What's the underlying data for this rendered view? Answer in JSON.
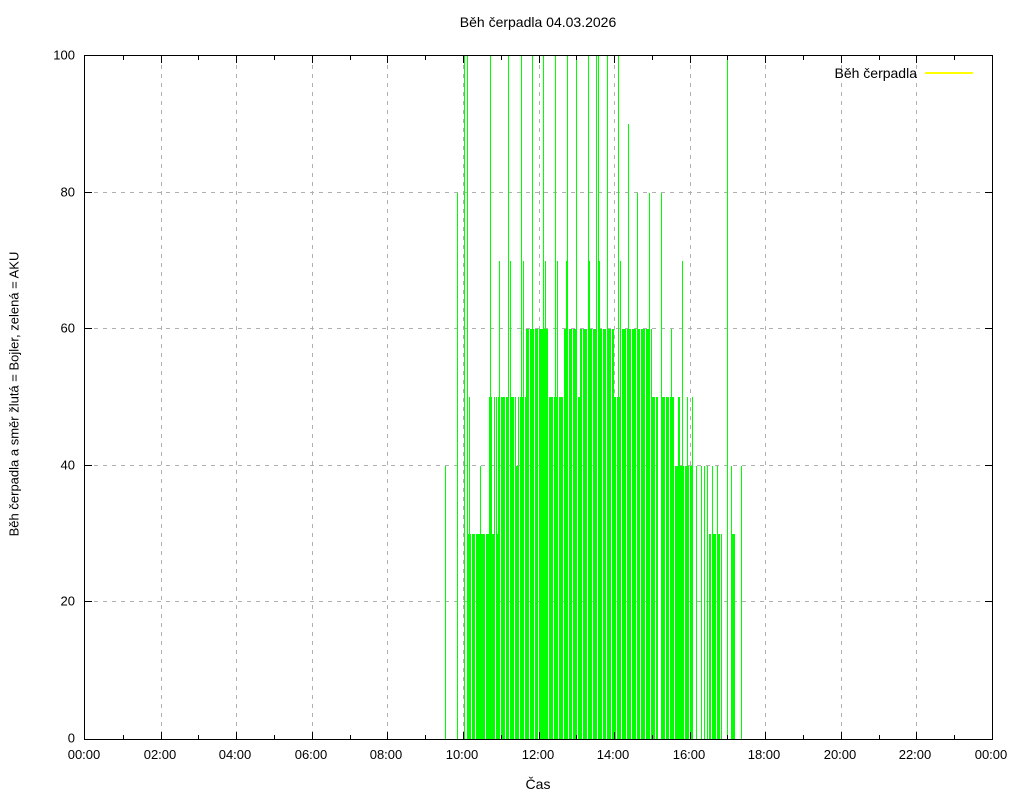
{
  "chart_data": {
    "type": "bar",
    "style": "impulses",
    "title": "Běh čerpadla 04.03.2026",
    "xlabel": "Čas",
    "ylabel": "Běh čerpadla a směr žlutá = Bojler, zelená = AKU",
    "legend": {
      "label": "Běh čerpadla",
      "line_color": "#ffff00",
      "position": "top-right"
    },
    "series_color": "#00ff00",
    "grid_color": "#b0b0b0",
    "grid": true,
    "ylim": [
      0,
      100
    ],
    "x_range_minutes": [
      0,
      1440
    ],
    "y_ticks": [
      0,
      20,
      40,
      60,
      80,
      100
    ],
    "x_tick_interval_hours": 2,
    "x_minor_tick_interval_hours": 1,
    "x_tick_labels": [
      "00:00",
      "02:00",
      "04:00",
      "06:00",
      "08:00",
      "10:00",
      "12:00",
      "14:00",
      "16:00",
      "18:00",
      "20:00",
      "22:00",
      "00:00"
    ],
    "impulses_format": "[minute_of_day, percent_value]",
    "impulses": [
      [
        571,
        40
      ],
      [
        590,
        80
      ],
      [
        601,
        100
      ],
      [
        606,
        100
      ],
      [
        608,
        30
      ],
      [
        609,
        50
      ],
      [
        610,
        30
      ],
      [
        612,
        30
      ],
      [
        614,
        30
      ],
      [
        616,
        30
      ],
      [
        618,
        30
      ],
      [
        620,
        30
      ],
      [
        622,
        30
      ],
      [
        624,
        30
      ],
      [
        626,
        30
      ],
      [
        627,
        40
      ],
      [
        628,
        30
      ],
      [
        630,
        30
      ],
      [
        632,
        30
      ],
      [
        634,
        30
      ],
      [
        636,
        30
      ],
      [
        638,
        30
      ],
      [
        640,
        30
      ],
      [
        641,
        50
      ],
      [
        642,
        30
      ],
      [
        643,
        100
      ],
      [
        644,
        30
      ],
      [
        645,
        50
      ],
      [
        646,
        30
      ],
      [
        648,
        30
      ],
      [
        649,
        50
      ],
      [
        650,
        30
      ],
      [
        652,
        30
      ],
      [
        653,
        50
      ],
      [
        654,
        30
      ],
      [
        655,
        50
      ],
      [
        656,
        30
      ],
      [
        658,
        70
      ],
      [
        660,
        50
      ],
      [
        662,
        50
      ],
      [
        664,
        50
      ],
      [
        666,
        50
      ],
      [
        668,
        50
      ],
      [
        670,
        50
      ],
      [
        671,
        100
      ],
      [
        672,
        50
      ],
      [
        674,
        70
      ],
      [
        676,
        50
      ],
      [
        678,
        50
      ],
      [
        680,
        50
      ],
      [
        682,
        50
      ],
      [
        684,
        40
      ],
      [
        686,
        40
      ],
      [
        688,
        50
      ],
      [
        690,
        50
      ],
      [
        692,
        50
      ],
      [
        693,
        100
      ],
      [
        694,
        50
      ],
      [
        696,
        70
      ],
      [
        698,
        50
      ],
      [
        700,
        60
      ],
      [
        702,
        60
      ],
      [
        704,
        60
      ],
      [
        706,
        60
      ],
      [
        708,
        60
      ],
      [
        709,
        100
      ],
      [
        710,
        60
      ],
      [
        712,
        60
      ],
      [
        714,
        60
      ],
      [
        716,
        60
      ],
      [
        718,
        60
      ],
      [
        720,
        60
      ],
      [
        722,
        60
      ],
      [
        724,
        60
      ],
      [
        726,
        60
      ],
      [
        727,
        100
      ],
      [
        728,
        60
      ],
      [
        730,
        70
      ],
      [
        732,
        60
      ],
      [
        734,
        60
      ],
      [
        736,
        50
      ],
      [
        738,
        50
      ],
      [
        740,
        50
      ],
      [
        742,
        50
      ],
      [
        744,
        50
      ],
      [
        746,
        100
      ],
      [
        748,
        50
      ],
      [
        749,
        70
      ],
      [
        750,
        50
      ],
      [
        752,
        50
      ],
      [
        754,
        50
      ],
      [
        756,
        50
      ],
      [
        758,
        50
      ],
      [
        760,
        60
      ],
      [
        762,
        60
      ],
      [
        764,
        70
      ],
      [
        765,
        100
      ],
      [
        766,
        60
      ],
      [
        768,
        60
      ],
      [
        770,
        60
      ],
      [
        772,
        60
      ],
      [
        774,
        60
      ],
      [
        776,
        60
      ],
      [
        778,
        60
      ],
      [
        780,
        100
      ],
      [
        782,
        50
      ],
      [
        784,
        50
      ],
      [
        786,
        60
      ],
      [
        788,
        60
      ],
      [
        790,
        60
      ],
      [
        792,
        60
      ],
      [
        794,
        60
      ],
      [
        796,
        60
      ],
      [
        798,
        100
      ],
      [
        800,
        70
      ],
      [
        802,
        60
      ],
      [
        804,
        60
      ],
      [
        806,
        60
      ],
      [
        808,
        60
      ],
      [
        810,
        60
      ],
      [
        812,
        100
      ],
      [
        814,
        100
      ],
      [
        816,
        70
      ],
      [
        818,
        60
      ],
      [
        820,
        60
      ],
      [
        822,
        60
      ],
      [
        824,
        60
      ],
      [
        826,
        60
      ],
      [
        828,
        100
      ],
      [
        830,
        60
      ],
      [
        832,
        60
      ],
      [
        834,
        60
      ],
      [
        836,
        60
      ],
      [
        838,
        60
      ],
      [
        840,
        50
      ],
      [
        842,
        50
      ],
      [
        844,
        50
      ],
      [
        846,
        100
      ],
      [
        848,
        50
      ],
      [
        850,
        70
      ],
      [
        852,
        60
      ],
      [
        854,
        60
      ],
      [
        856,
        60
      ],
      [
        858,
        60
      ],
      [
        860,
        60
      ],
      [
        862,
        90
      ],
      [
        864,
        60
      ],
      [
        866,
        60
      ],
      [
        868,
        60
      ],
      [
        870,
        60
      ],
      [
        872,
        60
      ],
      [
        874,
        60
      ],
      [
        876,
        60
      ],
      [
        877,
        80
      ],
      [
        878,
        60
      ],
      [
        880,
        60
      ],
      [
        882,
        60
      ],
      [
        884,
        60
      ],
      [
        886,
        60
      ],
      [
        888,
        60
      ],
      [
        890,
        60
      ],
      [
        892,
        60
      ],
      [
        894,
        60
      ],
      [
        896,
        80
      ],
      [
        898,
        60
      ],
      [
        900,
        50
      ],
      [
        902,
        50
      ],
      [
        904,
        50
      ],
      [
        906,
        50
      ],
      [
        908,
        50
      ],
      [
        914,
        50
      ],
      [
        915,
        80
      ],
      [
        916,
        50
      ],
      [
        918,
        50
      ],
      [
        920,
        50
      ],
      [
        922,
        50
      ],
      [
        924,
        50
      ],
      [
        926,
        50
      ],
      [
        928,
        50
      ],
      [
        930,
        50
      ],
      [
        931,
        60
      ],
      [
        932,
        50
      ],
      [
        934,
        50
      ],
      [
        936,
        40
      ],
      [
        938,
        40
      ],
      [
        940,
        40
      ],
      [
        941,
        50
      ],
      [
        942,
        40
      ],
      [
        943,
        50
      ],
      [
        944,
        40
      ],
      [
        946,
        40
      ],
      [
        948,
        70
      ],
      [
        950,
        40
      ],
      [
        952,
        40
      ],
      [
        954,
        40
      ],
      [
        955,
        50
      ],
      [
        956,
        40
      ],
      [
        958,
        40
      ],
      [
        960,
        40
      ],
      [
        962,
        40
      ],
      [
        963,
        50
      ],
      [
        970,
        40
      ],
      [
        978,
        40
      ],
      [
        983,
        40
      ],
      [
        987,
        40
      ],
      [
        991,
        30
      ],
      [
        993,
        30
      ],
      [
        995,
        40
      ],
      [
        997,
        30
      ],
      [
        999,
        30
      ],
      [
        1001,
        30
      ],
      [
        1003,
        40
      ],
      [
        1005,
        30
      ],
      [
        1007,
        30
      ],
      [
        1009,
        30
      ],
      [
        1019,
        100
      ],
      [
        1025,
        40
      ],
      [
        1027,
        30
      ],
      [
        1029,
        30
      ],
      [
        1031,
        30
      ],
      [
        1042,
        40
      ]
    ]
  }
}
